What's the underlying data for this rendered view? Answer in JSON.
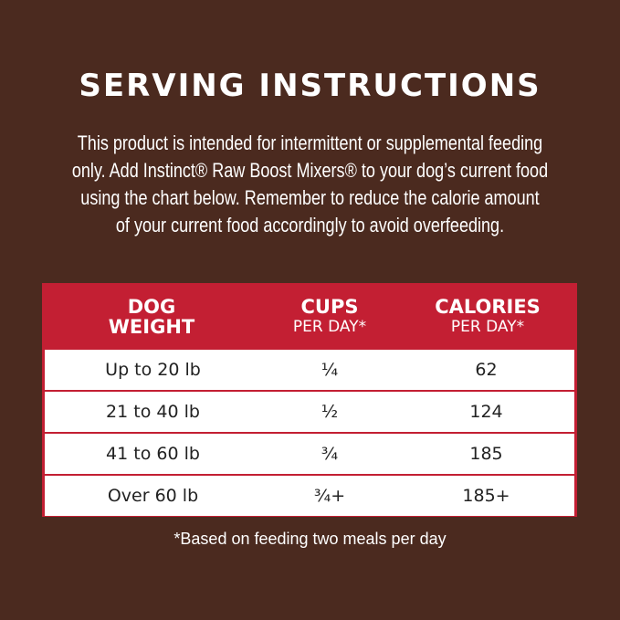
{
  "title": "SERVING INSTRUCTIONS",
  "intro_lines": [
    "This product is intended for intermittent or supplemental feeding",
    "only. Add Instinct® Raw Boost Mixers® to your dog’s current food",
    "using the chart below. Remember to reduce the calorie amount",
    "of your current food accordingly to avoid overfeeding."
  ],
  "table": {
    "headers": [
      {
        "main": "DOG",
        "sub": "WEIGHT",
        "sub_bold": true
      },
      {
        "main": "CUPS",
        "sub": "PER DAY*"
      },
      {
        "main": "CALORIES",
        "sub": "PER DAY*"
      }
    ],
    "rows": [
      [
        "Up to 20 lb",
        "¼",
        "62"
      ],
      [
        "21 to 40 lb",
        "½",
        "124"
      ],
      [
        "41 to 60 lb",
        "¾",
        "185"
      ],
      [
        "Over 60 lb",
        "¾+",
        "185+"
      ]
    ]
  },
  "footnote": "*Based on feeding two meals per day",
  "colors": {
    "background": "#4b2a1f",
    "table_red": "#c31f33",
    "row_bg": "#ffffff"
  }
}
